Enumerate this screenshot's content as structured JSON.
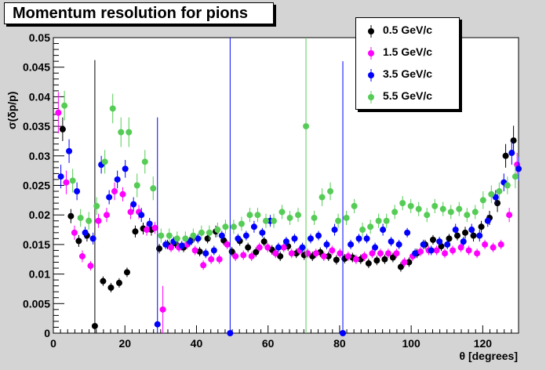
{
  "title": "Momentum resolution for pions",
  "ylabel": "σ(δp/p)",
  "xlabel": "θ [degrees]",
  "chart_data": {
    "type": "scatter",
    "title": "Momentum resolution for pions",
    "xlabel": "θ [degrees]",
    "ylabel": "σ(δp/p)",
    "xlim": [
      0,
      130
    ],
    "ylim": [
      0,
      0.05
    ],
    "xticks": [
      0,
      20,
      40,
      60,
      80,
      100,
      120
    ],
    "yticks": [
      0,
      0.005,
      0.01,
      0.015,
      0.02,
      0.025,
      0.03,
      0.035,
      0.04,
      0.045,
      0.05
    ],
    "yticklabels": [
      "0",
      "0.005",
      "0.01",
      "0.015",
      "0.02",
      "0.025",
      "0.03",
      "0.035",
      "0.04",
      "0.045",
      "0.05"
    ],
    "grid": false,
    "legend": "top-right",
    "series": [
      {
        "name": "0.5 GeV/c",
        "color": "#000000",
        "x": [
          2.6,
          4.9,
          7.1,
          9.4,
          11.6,
          13.9,
          16.1,
          18.4,
          20.6,
          22.9,
          25.1,
          27.4,
          29.6,
          31.9,
          34.1,
          36.4,
          38.6,
          40.9,
          43.1,
          45.4,
          47.6,
          49.9,
          52.1,
          54.4,
          56.6,
          58.9,
          61.1,
          63.4,
          65.6,
          67.9,
          70.1,
          72.4,
          74.6,
          76.9,
          79.1,
          81.4,
          83.6,
          85.9,
          88.1,
          90.4,
          92.6,
          94.9,
          97.1,
          99.4,
          101.6,
          103.9,
          106.1,
          108.4,
          110.6,
          112.9,
          115.1,
          117.4,
          119.6,
          121.9,
          124.1,
          126.4,
          128.6
        ],
        "y": [
          0.0345,
          0.0198,
          0.0156,
          0.0165,
          0.0012,
          0.0088,
          0.0077,
          0.0085,
          0.0103,
          0.0172,
          0.0177,
          0.0175,
          0.0143,
          0.015,
          0.0152,
          0.0145,
          0.0157,
          0.0138,
          0.016,
          0.0172,
          0.0157,
          0.0138,
          0.0156,
          0.0145,
          0.0137,
          0.0155,
          0.0141,
          0.013,
          0.0147,
          0.0135,
          0.0132,
          0.013,
          0.0137,
          0.013,
          0.0124,
          0.0126,
          0.0128,
          0.0125,
          0.0118,
          0.0123,
          0.0125,
          0.0128,
          0.0112,
          0.012,
          0.0135,
          0.015,
          0.0158,
          0.0147,
          0.016,
          0.0165,
          0.017,
          0.0165,
          0.018,
          0.0195,
          0.022,
          0.03,
          0.0326
        ],
        "err": [
          0.002,
          0.0012,
          0.001,
          0.001,
          0.045,
          0.0008,
          0.0008,
          0.0008,
          0.0008,
          0.001,
          0.001,
          0.001,
          0.0008,
          0.0008,
          0.0008,
          0.0008,
          0.0008,
          0.0008,
          0.0008,
          0.001,
          0.0008,
          0.0008,
          0.0008,
          0.0008,
          0.0008,
          0.0008,
          0.0008,
          0.0008,
          0.0008,
          0.0008,
          0.0008,
          0.0008,
          0.0008,
          0.0008,
          0.0008,
          0.0008,
          0.0008,
          0.0008,
          0.0008,
          0.0008,
          0.0008,
          0.0008,
          0.0008,
          0.0008,
          0.0008,
          0.0008,
          0.0008,
          0.0008,
          0.0008,
          0.0008,
          0.001,
          0.001,
          0.001,
          0.0012,
          0.0015,
          0.002,
          0.0025
        ]
      },
      {
        "name": "1.5 GeV/c",
        "color": "#ff00ff",
        "x": [
          1.4,
          3.6,
          5.9,
          8.1,
          10.4,
          12.6,
          14.9,
          17.1,
          19.4,
          21.6,
          23.9,
          26.1,
          28.4,
          30.6,
          32.9,
          35.1,
          37.4,
          39.6,
          41.9,
          44.1,
          46.4,
          48.6,
          50.9,
          53.1,
          55.4,
          57.6,
          59.9,
          62.1,
          64.4,
          66.6,
          68.9,
          71.1,
          73.4,
          75.6,
          77.9,
          80.1,
          82.4,
          84.6,
          86.9,
          89.1,
          91.4,
          93.6,
          95.9,
          98.1,
          100.4,
          102.6,
          104.9,
          107.1,
          109.4,
          111.6,
          113.9,
          116.1,
          118.4,
          120.6,
          122.9,
          125.1,
          127.4,
          129.6
        ],
        "y": [
          0.0373,
          0.0255,
          0.017,
          0.013,
          0.0114,
          0.019,
          0.02,
          0.024,
          0.0235,
          0.0205,
          0.0205,
          0.0175,
          0.0178,
          0.004,
          0.0145,
          0.0145,
          0.015,
          0.014,
          0.0115,
          0.0125,
          0.0125,
          0.015,
          0.013,
          0.0132,
          0.013,
          0.0145,
          0.0145,
          0.0135,
          0.0145,
          0.0135,
          0.014,
          0.0135,
          0.0135,
          0.013,
          0.014,
          0.0135,
          0.013,
          0.0125,
          0.013,
          0.0135,
          0.0135,
          0.0135,
          0.0135,
          0.012,
          0.013,
          0.0138,
          0.014,
          0.014,
          0.0135,
          0.014,
          0.0145,
          0.014,
          0.0135,
          0.015,
          0.0145,
          0.015,
          0.02,
          0.0285
        ],
        "err": [
          0.0035,
          0.002,
          0.0012,
          0.001,
          0.0008,
          0.0012,
          0.0012,
          0.0015,
          0.0012,
          0.0012,
          0.0012,
          0.001,
          0.001,
          0.004,
          0.0008,
          0.0008,
          0.0008,
          0.0008,
          0.0008,
          0.0008,
          0.0008,
          0.0008,
          0.0008,
          0.0008,
          0.0008,
          0.0008,
          0.0008,
          0.0008,
          0.0008,
          0.0008,
          0.0008,
          0.0008,
          0.0008,
          0.0008,
          0.0008,
          0.0008,
          0.0008,
          0.0008,
          0.0008,
          0.0008,
          0.0008,
          0.0008,
          0.0008,
          0.0008,
          0.0008,
          0.0008,
          0.0008,
          0.0008,
          0.0008,
          0.0008,
          0.0008,
          0.0008,
          0.0008,
          0.0008,
          0.0008,
          0.0008,
          0.0012,
          0.002
        ]
      },
      {
        "name": "3.5 GeV/c",
        "color": "#0000ff",
        "x": [
          2.1,
          4.4,
          6.6,
          8.9,
          11.1,
          13.4,
          15.6,
          17.9,
          20.1,
          22.4,
          24.6,
          26.9,
          29.1,
          31.4,
          33.6,
          35.9,
          38.1,
          40.4,
          42.6,
          44.9,
          47.1,
          49.4,
          51.6,
          53.9,
          56.1,
          58.4,
          60.6,
          62.9,
          65.1,
          67.4,
          69.6,
          71.9,
          74.1,
          76.4,
          78.6,
          80.9,
          83.1,
          85.4,
          87.6,
          89.9,
          92.1,
          94.4,
          96.6,
          98.9,
          101.1,
          103.4,
          105.6,
          107.9,
          110.1,
          112.4,
          114.6,
          116.9,
          119.1,
          121.4,
          123.6,
          125.9,
          128.1,
          130.0
        ],
        "y": [
          0.0265,
          0.0308,
          0.024,
          0.017,
          0.016,
          0.0285,
          0.023,
          0.026,
          0.0278,
          0.0218,
          0.02,
          0.0185,
          0.0015,
          0.015,
          0.0155,
          0.0148,
          0.0155,
          0.016,
          0.0135,
          0.014,
          0.0165,
          0.0,
          0.016,
          0.0165,
          0.018,
          0.017,
          0.019,
          0.0145,
          0.0155,
          0.016,
          0.0145,
          0.016,
          0.0165,
          0.015,
          0.0175,
          0.0,
          0.015,
          0.016,
          0.016,
          0.0145,
          0.0175,
          0.0155,
          0.015,
          0.017,
          0.0135,
          0.015,
          0.014,
          0.0155,
          0.015,
          0.0175,
          0.0155,
          0.0175,
          0.0165,
          0.019,
          0.023,
          0.0255,
          0.0305,
          0.0278
        ],
        "err": [
          0.002,
          0.002,
          0.0015,
          0.001,
          0.001,
          0.0015,
          0.0012,
          0.0015,
          0.0015,
          0.0012,
          0.0012,
          0.001,
          0.035,
          0.0008,
          0.0008,
          0.0008,
          0.0008,
          0.0008,
          0.0008,
          0.0008,
          0.0008,
          0.05,
          0.0008,
          0.0008,
          0.001,
          0.0008,
          0.001,
          0.0008,
          0.0008,
          0.0008,
          0.0008,
          0.0008,
          0.0008,
          0.0008,
          0.001,
          0.046,
          0.0008,
          0.0008,
          0.0008,
          0.0008,
          0.001,
          0.0008,
          0.0008,
          0.0008,
          0.0008,
          0.0008,
          0.0008,
          0.0008,
          0.0008,
          0.001,
          0.0008,
          0.001,
          0.001,
          0.001,
          0.0012,
          0.0015,
          0.002,
          0.002
        ]
      },
      {
        "name": "5.5 GeV/c",
        "color": "#55cc55",
        "x": [
          3.1,
          5.4,
          7.6,
          9.9,
          12.1,
          14.4,
          16.6,
          18.9,
          21.1,
          23.4,
          25.6,
          27.9,
          30.1,
          32.4,
          34.6,
          36.9,
          39.1,
          41.4,
          43.6,
          45.9,
          48.1,
          50.4,
          52.6,
          54.9,
          57.1,
          59.4,
          61.6,
          63.9,
          66.1,
          68.4,
          70.6,
          72.9,
          75.1,
          77.4,
          79.6,
          81.9,
          84.1,
          86.4,
          88.6,
          90.9,
          93.1,
          95.4,
          97.6,
          99.9,
          102.1,
          104.4,
          106.6,
          108.9,
          111.1,
          113.4,
          115.6,
          117.9,
          120.1,
          122.4,
          124.6,
          126.9,
          129.1
        ],
        "y": [
          0.0385,
          0.0258,
          0.0195,
          0.019,
          0.0215,
          0.029,
          0.038,
          0.034,
          0.034,
          0.025,
          0.029,
          0.0245,
          0.0165,
          0.0165,
          0.016,
          0.016,
          0.0165,
          0.017,
          0.017,
          0.0175,
          0.018,
          0.018,
          0.0185,
          0.02,
          0.02,
          0.019,
          0.019,
          0.0205,
          0.0195,
          0.02,
          0.035,
          0.0195,
          0.023,
          0.024,
          0.019,
          0.0195,
          0.0215,
          0.0175,
          0.018,
          0.019,
          0.019,
          0.0205,
          0.022,
          0.0215,
          0.021,
          0.02,
          0.0215,
          0.021,
          0.0205,
          0.021,
          0.02,
          0.0205,
          0.0225,
          0.0235,
          0.024,
          0.025,
          0.0265
        ],
        "err": [
          0.0025,
          0.002,
          0.0015,
          0.0015,
          0.0015,
          0.002,
          0.0025,
          0.0025,
          0.0025,
          0.002,
          0.002,
          0.002,
          0.0012,
          0.0012,
          0.0012,
          0.0012,
          0.0012,
          0.0012,
          0.0012,
          0.0012,
          0.0012,
          0.0012,
          0.0012,
          0.0012,
          0.0012,
          0.0012,
          0.0012,
          0.0012,
          0.0012,
          0.0012,
          0.035,
          0.0012,
          0.0015,
          0.0015,
          0.0012,
          0.0012,
          0.0012,
          0.0012,
          0.0012,
          0.0012,
          0.0012,
          0.0012,
          0.0012,
          0.0012,
          0.0012,
          0.0012,
          0.0012,
          0.0012,
          0.0012,
          0.0012,
          0.0012,
          0.0012,
          0.0015,
          0.0015,
          0.0015,
          0.0015,
          0.002
        ]
      }
    ]
  }
}
